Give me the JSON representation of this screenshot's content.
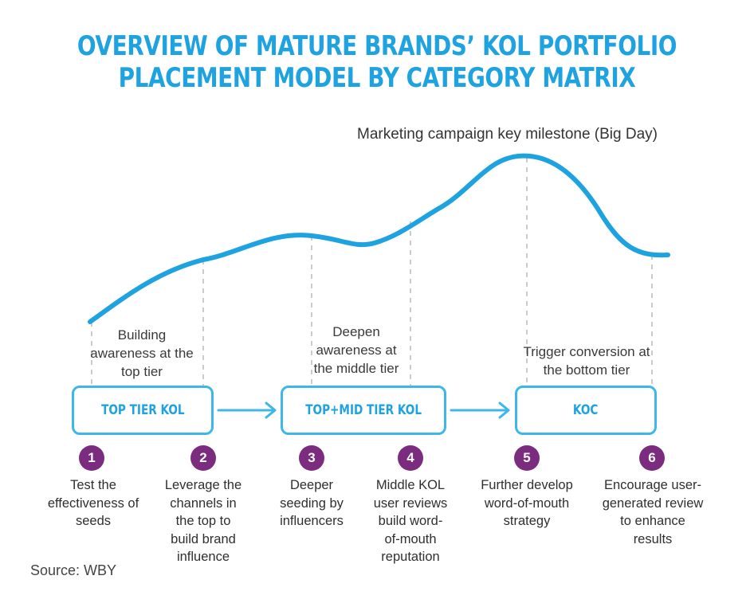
{
  "title": {
    "line1": "Overview of mature brands’ KOL portfolio",
    "line2": "placement model by category matrix"
  },
  "milestone_label": "Marketing campaign key milestone (Big Day)",
  "colors": {
    "accent": "#1fa3e0",
    "box_border": "#3db6ea",
    "step_circle": "#7b2c7e",
    "dashed": "#cccccc"
  },
  "stages": [
    {
      "line1": "Building",
      "line2": "awareness at the",
      "line3": "top tier"
    },
    {
      "line1": "Deepen",
      "line2": "awareness at",
      "line3": "the middle tier"
    },
    {
      "line1": "Trigger conversion at",
      "line2": "the bottom tier"
    }
  ],
  "tiers": [
    {
      "label": "TOP TIER KOL"
    },
    {
      "label": "TOP+MID TIER KOL"
    },
    {
      "label": "KOC"
    }
  ],
  "steps": [
    {
      "num": "1",
      "line1": "Test the",
      "line2": "effectiveness of",
      "line3": "seeds"
    },
    {
      "num": "2",
      "line1": "Leverage the",
      "line2": "channels in",
      "line3": "the top to",
      "line4": "build brand",
      "line5": "influence"
    },
    {
      "num": "3",
      "line1": "Deeper",
      "line2": "seeding by",
      "line3": "influencers"
    },
    {
      "num": "4",
      "line1": "Middle KOL",
      "line2": "user reviews",
      "line3": "build word-",
      "line4": "of-mouth",
      "line5": "reputation"
    },
    {
      "num": "5",
      "line1": "Further develop",
      "line2": "word-of-mouth",
      "line3": "strategy"
    },
    {
      "num": "6",
      "line1": "Encourage user-",
      "line2": "generated review",
      "line3": "to enhance",
      "line4": "results"
    }
  ],
  "source": "Source: WBY"
}
